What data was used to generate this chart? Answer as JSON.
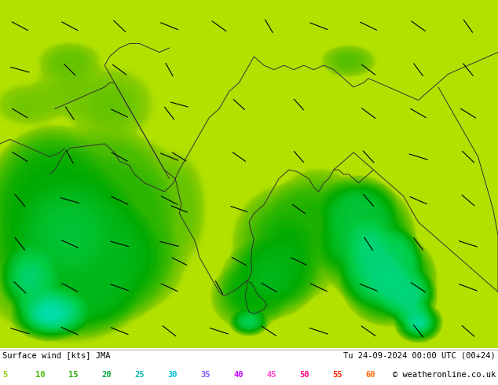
{
  "title_left": "Surface wind [kts] JMA",
  "title_right": "Tu 24-09-2024 00:00 UTC (00+24)",
  "credit": "© weatheronline.co.uk",
  "legend_values": [
    5,
    10,
    15,
    20,
    25,
    30,
    35,
    40,
    45,
    50,
    55,
    60
  ],
  "legend_colors": [
    "#00ff00",
    "#88ff00",
    "#ccff00",
    "#00aaff",
    "#0055ff",
    "#00ffff",
    "#aa00ff",
    "#8800ff",
    "#ff00ff",
    "#ff0088",
    "#ff2200",
    "#ff6600"
  ],
  "fig_width": 6.34,
  "fig_height": 4.9,
  "dpi": 100,
  "map_extent": [
    55,
    105,
    2,
    42
  ],
  "colormap_colors": [
    "#f0d000",
    "#d4e800",
    "#aaee00",
    "#66dd00",
    "#22cc00",
    "#00bb00",
    "#00ddaa",
    "#00bbdd",
    "#0088ff",
    "#0044ff",
    "#8800ff"
  ],
  "colormap_levels": [
    0,
    5,
    10,
    15,
    20,
    25,
    30,
    35,
    40,
    45,
    50,
    60
  ]
}
